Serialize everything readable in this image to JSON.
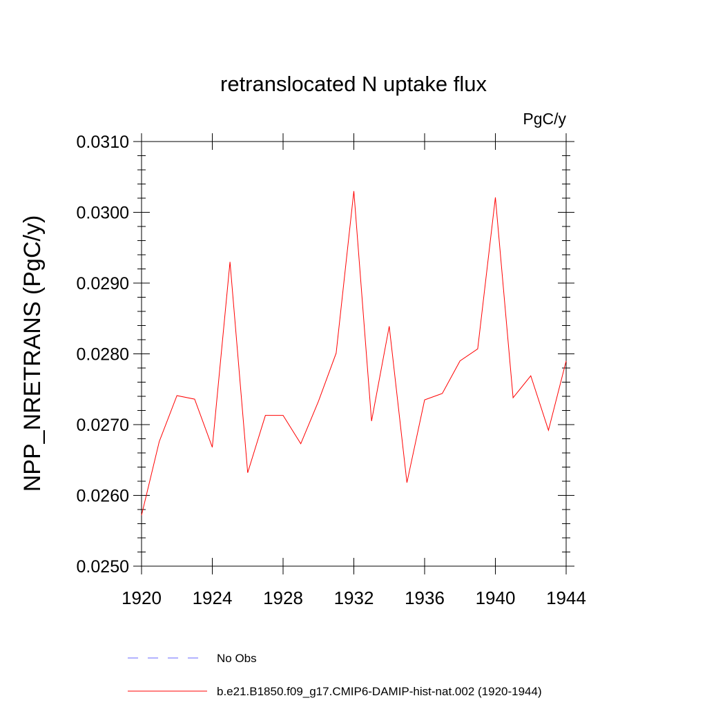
{
  "chart_data": {
    "type": "line",
    "title": "retranslocated N uptake flux",
    "units": "PgC/y",
    "xlabel": "",
    "ylabel": "NPP_NRETRANS  (PgC/y)",
    "xlim": [
      1920,
      1944
    ],
    "ylim": [
      0.025,
      0.031
    ],
    "x_ticks": [
      1920,
      1924,
      1928,
      1932,
      1936,
      1940,
      1944
    ],
    "x_tick_labels": [
      "1920",
      "1924",
      "1928",
      "1932",
      "1936",
      "1940",
      "1944"
    ],
    "y_ticks": [
      0.025,
      0.026,
      0.027,
      0.028,
      0.029,
      0.03,
      0.031
    ],
    "y_tick_labels": [
      "0.0250",
      "0.0260",
      "0.0270",
      "0.0280",
      "0.0290",
      "0.0300",
      "0.0310"
    ],
    "grid": false,
    "legend_position": "bottom",
    "series": [
      {
        "name": "No Obs",
        "color": "#0000ff",
        "dash": "dashed",
        "x": [],
        "y": []
      },
      {
        "name": "b.e21.B1850.f09_g17.CMIP6-DAMIP-hist-nat.002 (1920-1944)",
        "color": "#ff0000",
        "dash": "solid",
        "x": [
          1920,
          1921,
          1922,
          1923,
          1924,
          1925,
          1926,
          1927,
          1928,
          1929,
          1930,
          1931,
          1932,
          1933,
          1934,
          1935,
          1936,
          1937,
          1938,
          1939,
          1940,
          1941,
          1942,
          1943,
          1944
        ],
        "y": [
          0.02572,
          0.02676,
          0.02741,
          0.02736,
          0.02668,
          0.0293,
          0.02632,
          0.02713,
          0.02713,
          0.02673,
          0.02733,
          0.02801,
          0.0303,
          0.02705,
          0.02839,
          0.02618,
          0.02735,
          0.02744,
          0.0279,
          0.02807,
          0.03021,
          0.02738,
          0.02769,
          0.02692,
          0.0279
        ]
      }
    ]
  }
}
